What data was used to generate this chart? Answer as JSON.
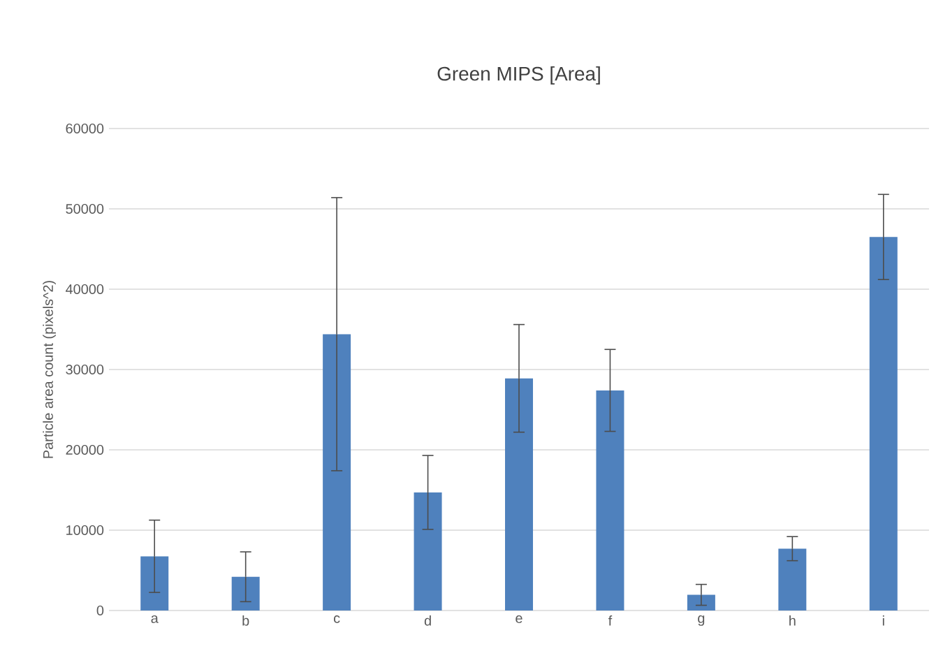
{
  "chart_data": {
    "type": "bar",
    "title": "Green MIPS [Area]",
    "ylabel": "Particle area count (pixels^2)",
    "categories": [
      "a",
      "b",
      "c",
      "d",
      "e",
      "f",
      "g",
      "h",
      "i"
    ],
    "values": [
      6750,
      4200,
      34400,
      14700,
      28900,
      27400,
      1950,
      7700,
      46500
    ],
    "errors": [
      4500,
      3100,
      17000,
      4600,
      6700,
      5100,
      1300,
      1500,
      5300
    ],
    "color": "#4f81bd",
    "ylim": [
      0,
      60000
    ],
    "yticks": [
      0,
      10000,
      20000,
      30000,
      40000,
      50000,
      60000
    ],
    "grid": "y"
  }
}
